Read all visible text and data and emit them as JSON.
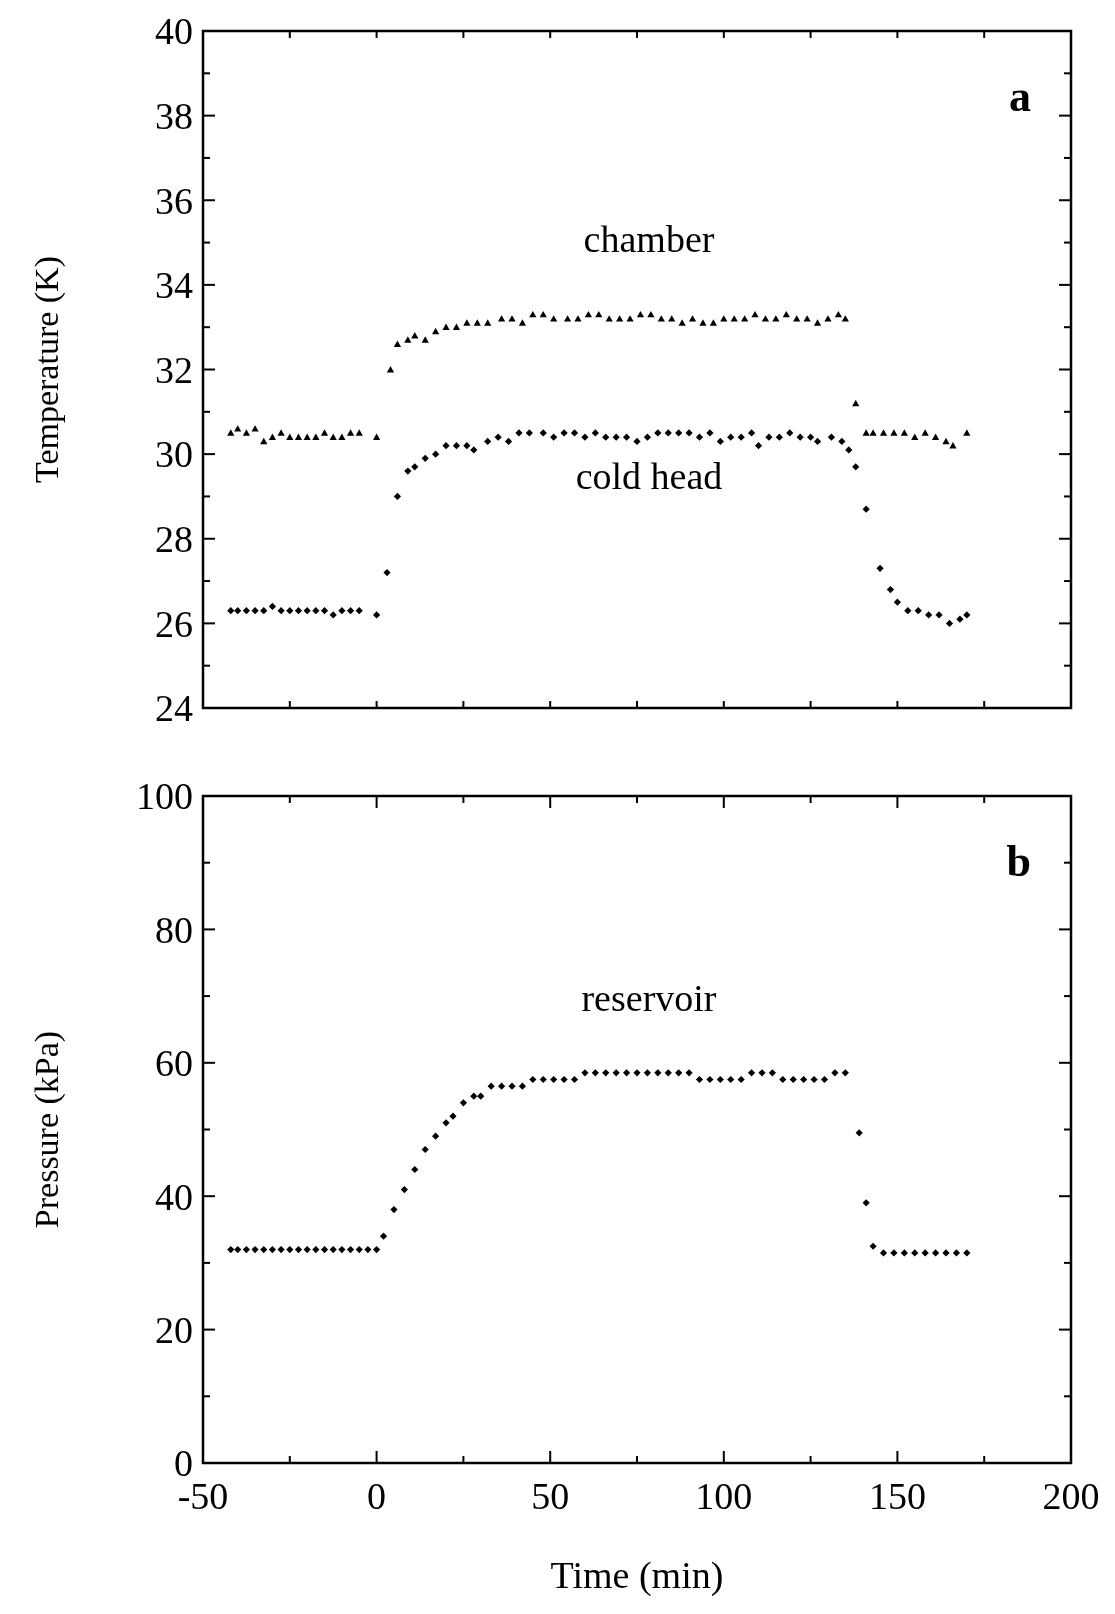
{
  "chart_data": [
    {
      "type": "scatter",
      "ylabel": "Temperature (K)",
      "annotations": [
        "a"
      ],
      "tick_labels": "y",
      "xlim": [
        -50,
        200
      ],
      "ylim": [
        24,
        40
      ],
      "xticks": [
        {
          "value": -50,
          "label": null
        },
        {
          "value": -25,
          "label": null
        },
        {
          "value": 0,
          "label": null
        },
        {
          "value": 25,
          "label": null
        },
        {
          "value": 50,
          "label": null
        },
        {
          "value": 75,
          "label": null
        },
        {
          "value": 100,
          "label": null
        },
        {
          "value": 125,
          "label": null
        },
        {
          "value": 150,
          "label": null
        },
        {
          "value": 175,
          "label": null
        },
        {
          "value": 200,
          "label": null
        }
      ],
      "yticks": [
        24,
        {
          "value": 25,
          "label": null
        },
        26,
        {
          "value": 27,
          "label": null
        },
        28,
        {
          "value": 29,
          "label": null
        },
        30,
        {
          "value": 31,
          "label": null
        },
        32,
        {
          "value": 33,
          "label": null
        },
        34,
        {
          "value": 35,
          "label": null
        },
        36,
        {
          "value": 37,
          "label": null
        },
        38,
        {
          "value": 39,
          "label": null
        },
        40
      ],
      "series": [
        {
          "name": "chamber",
          "color": "#000000",
          "marker": "triangle",
          "x": [
            -42,
            -40,
            -37.5,
            -35,
            -32.5,
            -30,
            -27.5,
            -25,
            -22.5,
            -20,
            -17.5,
            -15,
            -12.5,
            -10,
            -7.5,
            -5,
            0,
            4,
            6,
            9,
            11,
            14,
            17,
            20,
            23,
            26,
            29,
            32,
            36,
            39,
            42,
            45,
            48,
            51,
            55,
            58,
            61,
            64,
            67,
            70,
            73,
            76,
            79,
            82,
            85,
            88,
            91,
            94,
            97,
            100,
            103,
            106,
            109,
            112,
            115,
            118,
            121,
            124,
            127,
            130,
            133,
            135,
            138,
            141,
            143,
            146,
            149,
            152,
            155,
            158,
            161,
            164,
            166,
            170
          ],
          "values": [
            30.5,
            30.6,
            30.5,
            30.6,
            30.3,
            30.4,
            30.5,
            30.4,
            30.4,
            30.4,
            30.4,
            30.5,
            30.4,
            30.4,
            30.5,
            30.5,
            30.4,
            32.0,
            32.6,
            32.7,
            32.8,
            32.7,
            32.9,
            33.0,
            33.0,
            33.1,
            33.1,
            33.1,
            33.2,
            33.2,
            33.1,
            33.3,
            33.3,
            33.2,
            33.2,
            33.2,
            33.3,
            33.3,
            33.2,
            33.2,
            33.2,
            33.3,
            33.3,
            33.2,
            33.2,
            33.1,
            33.2,
            33.1,
            33.1,
            33.2,
            33.2,
            33.2,
            33.3,
            33.2,
            33.2,
            33.3,
            33.2,
            33.2,
            33.1,
            33.2,
            33.3,
            33.2,
            31.2,
            30.5,
            30.5,
            30.5,
            30.5,
            30.5,
            30.4,
            30.5,
            30.4,
            30.3,
            30.2,
            30.5
          ]
        },
        {
          "name": "cold head",
          "color": "#000000",
          "marker": "diamond",
          "x": [
            -42,
            -40,
            -37.5,
            -35,
            -32.5,
            -30,
            -27.5,
            -25,
            -22.5,
            -20,
            -17.5,
            -15,
            -12.5,
            -10,
            -7.5,
            -5,
            0,
            3,
            6,
            9,
            11,
            14,
            17,
            20,
            23,
            26,
            28,
            32,
            35,
            38,
            41,
            44,
            48,
            51,
            54,
            57,
            60,
            63,
            66,
            69,
            72,
            75,
            78,
            81,
            84,
            87,
            90,
            93,
            96,
            99,
            102,
            105,
            108,
            110,
            113,
            116,
            119,
            122,
            125,
            127,
            131,
            134,
            136,
            138,
            141,
            145,
            148,
            150,
            153,
            156,
            159,
            162,
            165,
            168,
            170
          ],
          "values": [
            26.3,
            26.3,
            26.3,
            26.3,
            26.3,
            26.4,
            26.3,
            26.3,
            26.3,
            26.3,
            26.3,
            26.3,
            26.2,
            26.3,
            26.3,
            26.3,
            26.2,
            27.2,
            29.0,
            29.6,
            29.7,
            29.9,
            30.0,
            30.2,
            30.2,
            30.2,
            30.1,
            30.3,
            30.4,
            30.3,
            30.5,
            30.5,
            30.5,
            30.4,
            30.5,
            30.5,
            30.4,
            30.5,
            30.4,
            30.4,
            30.4,
            30.3,
            30.4,
            30.5,
            30.5,
            30.5,
            30.5,
            30.4,
            30.5,
            30.3,
            30.4,
            30.4,
            30.5,
            30.2,
            30.4,
            30.4,
            30.5,
            30.4,
            30.4,
            30.3,
            30.4,
            30.3,
            30.1,
            29.7,
            28.7,
            27.3,
            26.8,
            26.5,
            26.3,
            26.3,
            26.2,
            26.2,
            26.0,
            26.1,
            26.2
          ]
        }
      ]
    },
    {
      "type": "scatter",
      "xlabel": "Time  (min)",
      "ylabel": "Pressure (kPa)",
      "annotations": [
        "b"
      ],
      "xlim": [
        -50,
        200
      ],
      "ylim": [
        0,
        100
      ],
      "xticks": [
        -50,
        {
          "value": -25,
          "label": null
        },
        0,
        {
          "value": 25,
          "label": null
        },
        50,
        {
          "value": 75,
          "label": null
        },
        100,
        {
          "value": 125,
          "label": null
        },
        150,
        {
          "value": 175,
          "label": null
        },
        200
      ],
      "yticks": [
        0,
        {
          "value": 10,
          "label": null
        },
        20,
        {
          "value": 30,
          "label": null
        },
        40,
        {
          "value": 50,
          "label": null
        },
        60,
        {
          "value": 70,
          "label": null
        },
        80,
        {
          "value": 90,
          "label": null
        },
        100
      ],
      "series": [
        {
          "name": "reservoir",
          "color": "#000000",
          "marker": "diamond",
          "x": [
            -42,
            -40,
            -37.5,
            -35,
            -32.5,
            -30,
            -27.5,
            -25,
            -22.5,
            -20,
            -17.5,
            -15,
            -12.5,
            -10,
            -7.5,
            -5,
            -2.5,
            0,
            2,
            5,
            8,
            11,
            14,
            17,
            20,
            22,
            25,
            28,
            30,
            33,
            36,
            39,
            42,
            45,
            48,
            51,
            54,
            57,
            60,
            63,
            66,
            69,
            72,
            75,
            78,
            81,
            84,
            87,
            90,
            93,
            96,
            99,
            102,
            105,
            108,
            111,
            114,
            117,
            120,
            123,
            126,
            129,
            132,
            135,
            139,
            141,
            143,
            146,
            149,
            152,
            155,
            158,
            161,
            164,
            167,
            170
          ],
          "values": [
            32,
            32,
            32,
            32,
            32,
            32,
            32,
            32,
            32,
            32,
            32,
            32,
            32,
            32,
            32,
            32,
            32,
            32,
            34,
            38,
            41,
            44,
            47,
            49,
            51,
            52,
            54,
            55,
            55,
            56.5,
            56.5,
            56.5,
            56.5,
            57.5,
            57.5,
            57.5,
            57.5,
            57.5,
            58.5,
            58.5,
            58.5,
            58.5,
            58.5,
            58.5,
            58.5,
            58.5,
            58.5,
            58.5,
            58.5,
            57.5,
            57.5,
            57.5,
            57.5,
            57.5,
            58.5,
            58.5,
            58.5,
            57.5,
            57.5,
            57.5,
            57.5,
            57.5,
            58.5,
            58.5,
            49.5,
            39,
            32.5,
            31.5,
            31.5,
            31.5,
            31.5,
            31.5,
            31.5,
            31.5,
            31.5,
            31.5
          ]
        }
      ]
    }
  ]
}
